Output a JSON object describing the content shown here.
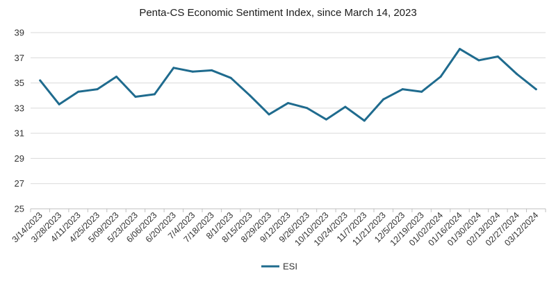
{
  "chart_data": {
    "type": "line",
    "title": "Penta-CS Economic Sentiment Index, since March 14, 2023",
    "xlabel": "",
    "ylabel": "",
    "categories": [
      "3/14/2023",
      "3/28/2023",
      "4/11/2023",
      "4/25/2023",
      "5/09/2023",
      "5/23/2023",
      "6/06/2023",
      "6/20/2023",
      "7/4/2023",
      "7/18/2023",
      "8/1/2023",
      "8/15/2023",
      "8/29/2023",
      "9/12/2023",
      "9/26/2023",
      "10/10/2023",
      "10/24/2023",
      "11/7/2023",
      "11/21/2023",
      "12/5/2023",
      "12/19/2023",
      "01/02/2024",
      "01/16/2024",
      "01/30/2024",
      "02/13/2024",
      "02/27/2024",
      "03/12/2024"
    ],
    "series": [
      {
        "name": "ESI",
        "values": [
          35.2,
          33.3,
          34.3,
          34.5,
          35.5,
          33.9,
          34.1,
          36.2,
          35.9,
          36.0,
          35.4,
          34.0,
          32.5,
          33.4,
          33.0,
          32.1,
          33.1,
          32.0,
          33.7,
          34.5,
          34.3,
          35.5,
          37.7,
          36.8,
          37.1,
          35.7,
          34.5
        ]
      }
    ],
    "ylim": [
      25,
      39
    ],
    "yticks": [
      25,
      27,
      29,
      31,
      33,
      35,
      37,
      39
    ],
    "grid": "horizontal",
    "legend_position": "bottom",
    "colors": {
      "series": "#1f6b8e",
      "grid": "#d9d9d9",
      "axis": "#bfbfbf"
    }
  }
}
